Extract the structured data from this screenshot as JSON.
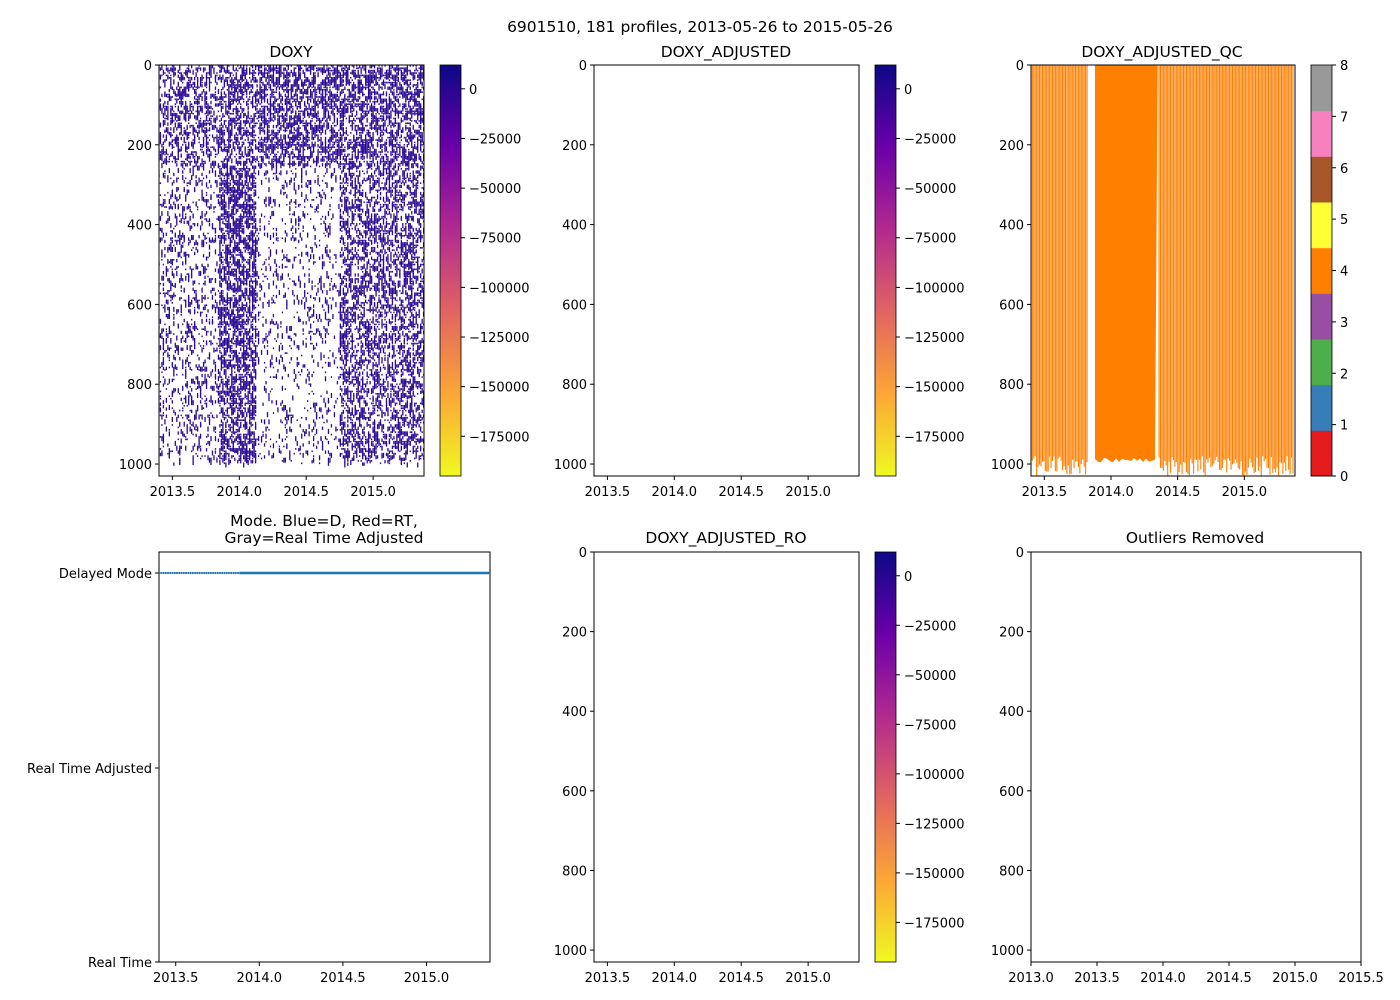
{
  "figure": {
    "title": "6901510, 181 profiles, 2013-05-26 to 2015-05-26"
  },
  "palettes": {
    "plasma": [
      "#f0f921",
      "#fca636",
      "#e16462",
      "#b12a90",
      "#6a00a8",
      "#0d0887"
    ],
    "qc_classes": [
      {
        "level": 0,
        "color": "#e41a1c"
      },
      {
        "level": 1,
        "color": "#377eb8"
      },
      {
        "level": 2,
        "color": "#4daf4a"
      },
      {
        "level": 3,
        "color": "#984ea3"
      },
      {
        "level": 4,
        "color": "#ff7f00"
      },
      {
        "level": 5,
        "color": "#ffff33"
      },
      {
        "level": 6,
        "color": "#a65628"
      },
      {
        "level": 7,
        "color": "#f781bf"
      },
      {
        "level": 8,
        "color": "#999999"
      }
    ],
    "doxy_color": "#2a0a93",
    "mode_color": "#1f77b4"
  },
  "chart_data": [
    {
      "id": "doxy",
      "type": "heatmap",
      "title": "DOXY",
      "xlim": [
        2013.4,
        2015.38
      ],
      "ylim": [
        1030,
        0
      ],
      "xticks": [
        "2013.5",
        "2014.0",
        "2014.5",
        "2015.0"
      ],
      "yticks": [
        "0",
        "200",
        "400",
        "600",
        "800",
        "1000"
      ],
      "colorbar": {
        "range": [
          -195000,
          12000
        ],
        "ticks": [
          "0",
          "−25000",
          "−50000",
          "−75000",
          "−100000",
          "−125000",
          "−150000",
          "−175000"
        ],
        "tick_values": [
          0,
          -25000,
          -50000,
          -75000,
          -100000,
          -125000,
          -150000,
          -175000
        ]
      },
      "profiles": 181,
      "date_range": [
        "2013.40",
        "2015.40"
      ],
      "note": "sparse profiles, values near 0 (dark purple)"
    },
    {
      "id": "doxy_adjusted",
      "type": "heatmap",
      "title": "DOXY_ADJUSTED",
      "xlim": [
        2013.4,
        2015.38
      ],
      "ylim": [
        1030,
        0
      ],
      "xticks": [
        "2013.5",
        "2014.0",
        "2014.5",
        "2015.0"
      ],
      "yticks": [
        "0",
        "200",
        "400",
        "600",
        "800",
        "1000"
      ],
      "colorbar": {
        "range": [
          -195000,
          12000
        ],
        "ticks": [
          "0",
          "−25000",
          "−50000",
          "−75000",
          "−100000",
          "−125000",
          "−150000",
          "−175000"
        ],
        "tick_values": [
          0,
          -25000,
          -50000,
          -75000,
          -100000,
          -125000,
          -150000,
          -175000
        ]
      },
      "values": []
    },
    {
      "id": "doxy_adjusted_qc",
      "type": "heatmap",
      "title": "DOXY_ADJUSTED_QC",
      "xlim": [
        2013.4,
        2015.38
      ],
      "ylim": [
        1030,
        0
      ],
      "xticks": [
        "2013.5",
        "2014.0",
        "2014.5",
        "2015.0"
      ],
      "yticks": [
        "0",
        "200",
        "400",
        "600",
        "800",
        "1000"
      ],
      "colorbar": {
        "range": [
          0,
          8
        ],
        "ticks": [
          "0",
          "1",
          "2",
          "3",
          "4",
          "5",
          "6",
          "7",
          "8"
        ],
        "tick_values": [
          0,
          1,
          2,
          3,
          4,
          5,
          6,
          7,
          8
        ]
      },
      "qc_value": 4,
      "dense_segment": [
        2013.88,
        2014.35
      ],
      "profile_bottoms": [
        980,
        1030
      ],
      "dense_bottom": 990
    },
    {
      "id": "mode",
      "type": "scatter",
      "title": "Mode. Blue=D, Red=RT,\nGray=Real Time Adjusted",
      "title_lines": [
        "Mode. Blue=D, Red=RT,",
        "Gray=Real Time Adjusted"
      ],
      "xlim": [
        2013.4,
        2015.38
      ],
      "xticks": [
        "2013.5",
        "2014.0",
        "2014.5",
        "2015.0"
      ],
      "ylabels": [
        "Delayed Mode",
        "Real Time Adjusted",
        "Real Time"
      ],
      "series": [
        {
          "name": "Delayed Mode",
          "level": "Delayed Mode",
          "x_start": 2013.4,
          "x_end": 2015.38,
          "sparse_until": 2013.88
        }
      ]
    },
    {
      "id": "doxy_adjusted_ro",
      "type": "heatmap",
      "title": "DOXY_ADJUSTED_RO",
      "xlim": [
        2013.4,
        2015.38
      ],
      "ylim": [
        1030,
        0
      ],
      "xticks": [
        "2013.5",
        "2014.0",
        "2014.5",
        "2015.0"
      ],
      "yticks": [
        "0",
        "200",
        "400",
        "600",
        "800",
        "1000"
      ],
      "colorbar": {
        "range": [
          -195000,
          12000
        ],
        "ticks": [
          "0",
          "−25000",
          "−50000",
          "−75000",
          "−100000",
          "−125000",
          "−150000",
          "−175000"
        ],
        "tick_values": [
          0,
          -25000,
          -50000,
          -75000,
          -100000,
          -125000,
          -150000,
          -175000
        ]
      },
      "values": []
    },
    {
      "id": "outliers_removed",
      "type": "heatmap",
      "title": "Outliers Removed",
      "xlim": [
        2013.0,
        2015.5
      ],
      "ylim": [
        1030,
        0
      ],
      "xticks": [
        "2013.0",
        "2013.5",
        "2014.0",
        "2014.5",
        "2015.0",
        "2015.5"
      ],
      "yticks": [
        "0",
        "200",
        "400",
        "600",
        "800",
        "1000"
      ],
      "values": []
    }
  ]
}
